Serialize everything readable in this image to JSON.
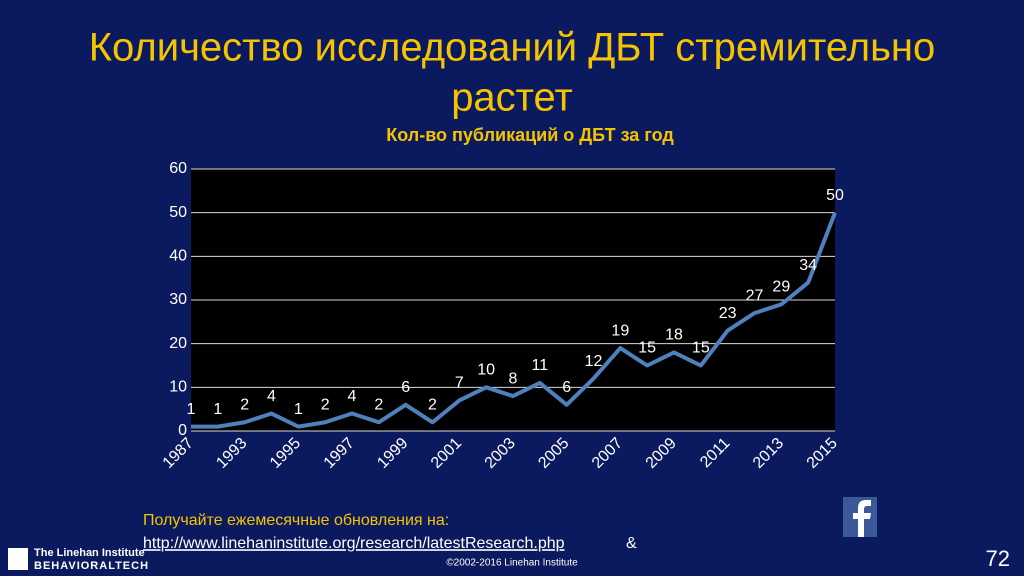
{
  "slide": {
    "title_lines": [
      "Количество исследований ДБТ стремительно",
      "растет"
    ],
    "footer": {
      "note": "Получайте ежемесячные обновления на:",
      "link": "http://www.linehaninstitute.org/research/latestResearch.php",
      "amp": "&",
      "copyright": "©2002-2016 Linehan Institute",
      "logo_top": "The Linehan Institute",
      "logo_bottom": "BEHAVIORALTECH",
      "page": "72"
    }
  },
  "chart_data": {
    "type": "line",
    "title": "Кол-во публикаций о ДБТ за год",
    "categories": [
      "1987",
      null,
      "1993",
      null,
      "1995",
      null,
      "1997",
      null,
      "1999",
      null,
      "2001",
      null,
      "2003",
      null,
      "2005",
      null,
      "2007",
      null,
      "2009",
      null,
      "2011",
      null,
      "2013",
      null,
      "2015"
    ],
    "series": [
      {
        "color": "#4f81bd",
        "values": [
          1,
          1,
          2,
          4,
          1,
          2,
          4,
          2,
          6,
          2,
          7,
          10,
          8,
          11,
          6,
          12,
          19,
          15,
          18,
          15,
          23,
          27,
          29,
          34,
          50
        ]
      }
    ],
    "ylim": [
      0,
      60
    ],
    "yticks": [
      0,
      10,
      20,
      30,
      40,
      50,
      60
    ],
    "grid": true
  }
}
